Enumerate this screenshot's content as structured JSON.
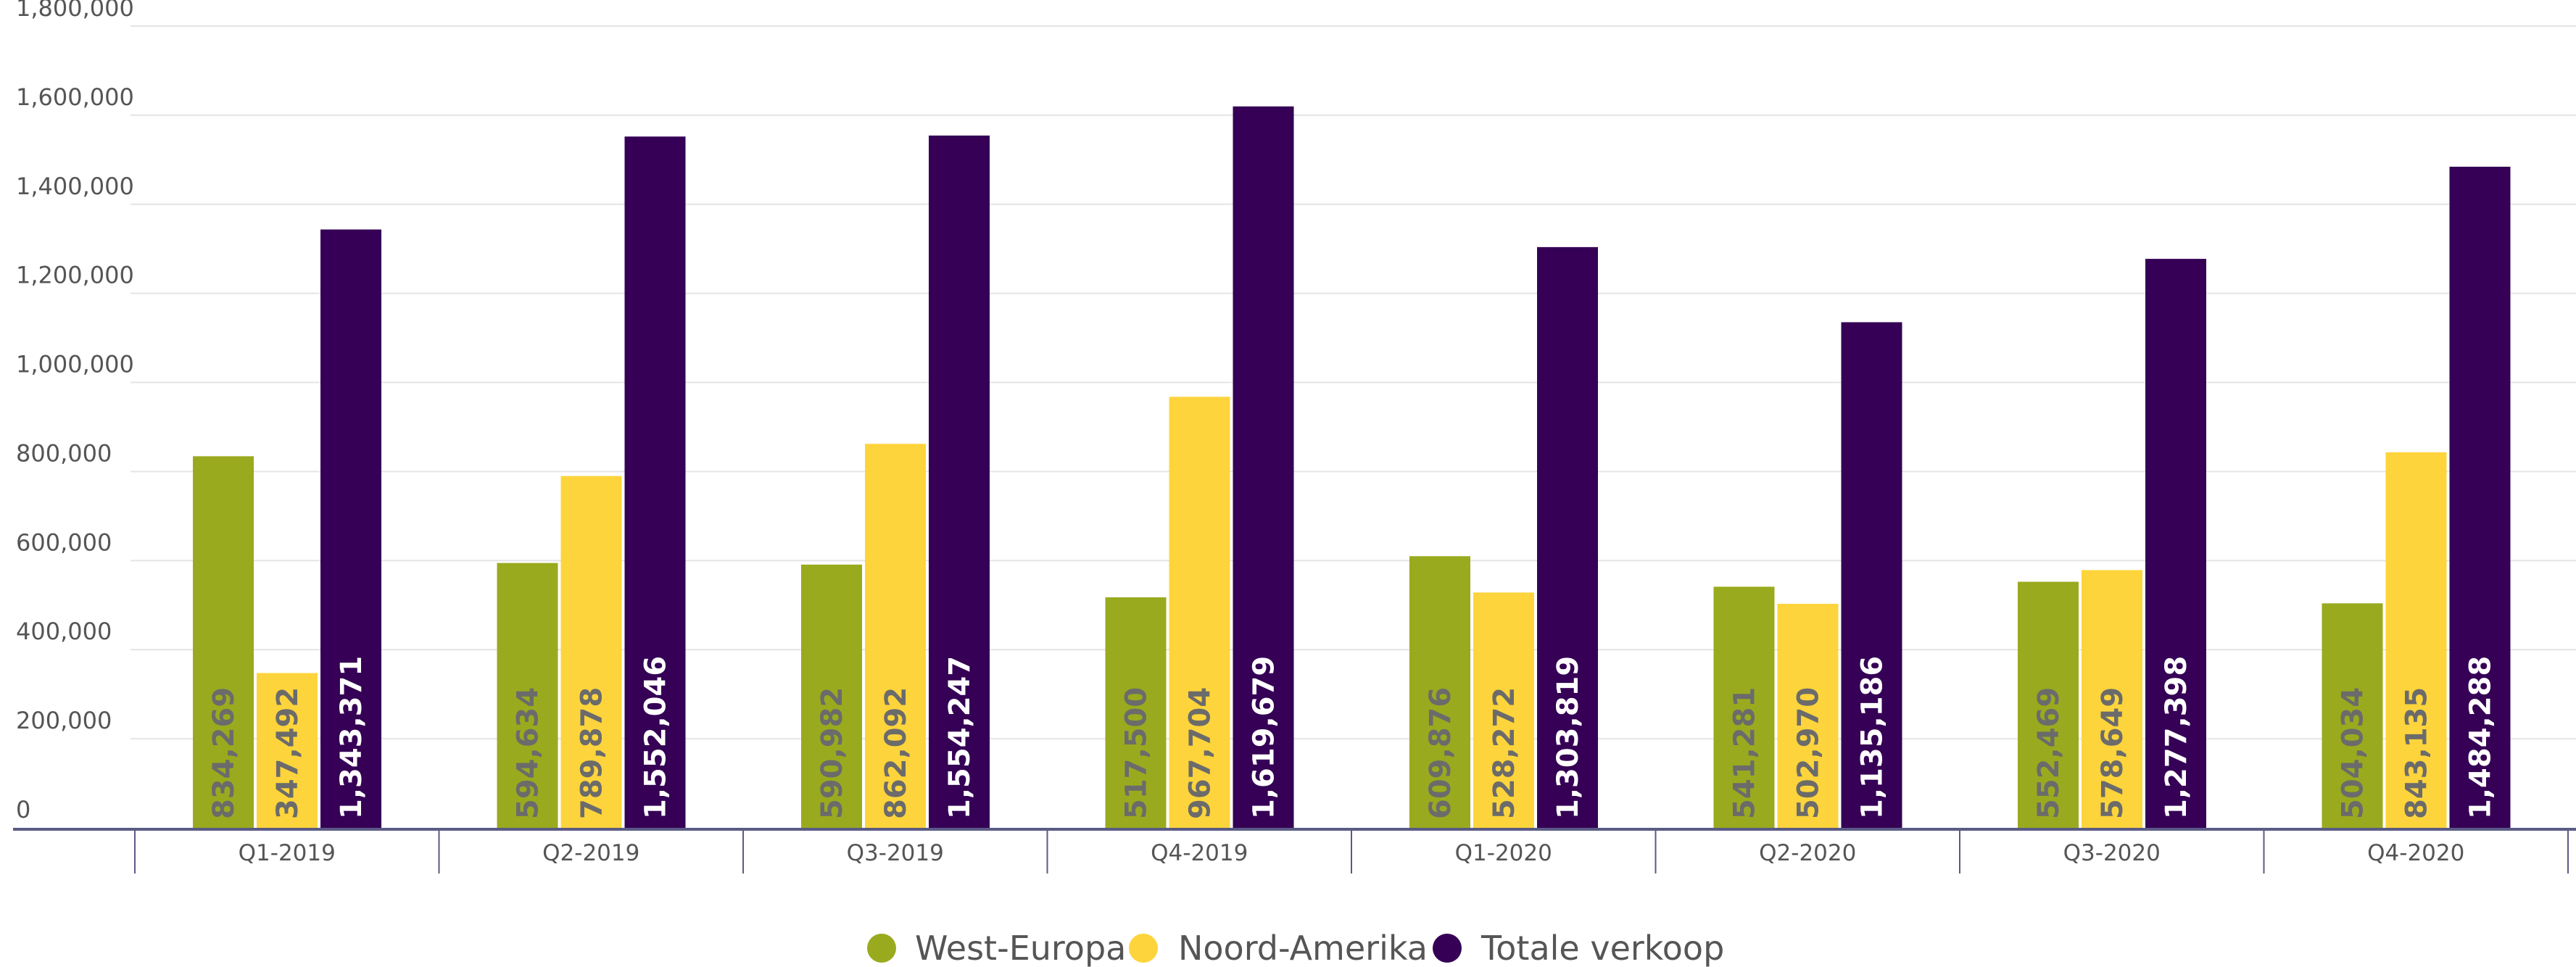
{
  "chart_data": {
    "type": "bar",
    "categories": [
      "Q1-2019",
      "Q2-2019",
      "Q3-2019",
      "Q4-2019",
      "Q1-2020",
      "Q2-2020",
      "Q3-2020",
      "Q4-2020"
    ],
    "series": [
      {
        "name": "West-Europa",
        "color": "#9aaa1e",
        "label_color": "#6b6b6b",
        "values": [
          834269,
          594634,
          590982,
          517500,
          609876,
          541281,
          552469,
          504034
        ],
        "labels": [
          "834,269",
          "594,634",
          "590,982",
          "517,500",
          "609,876",
          "541,281",
          "552,469",
          "504,034"
        ]
      },
      {
        "name": "Noord-Amerika",
        "color": "#fdd43b",
        "label_color": "#6b6b6b",
        "values": [
          347492,
          789878,
          862092,
          967704,
          528272,
          502970,
          578649,
          843135
        ],
        "labels": [
          "347,492",
          "789,878",
          "862,092",
          "967,704",
          "528,272",
          "502,970",
          "578,649",
          "843,135"
        ]
      },
      {
        "name": "Totale verkoop",
        "color": "#350055",
        "label_color": "#ffffff",
        "values": [
          1343371,
          1552046,
          1554247,
          1619679,
          1303819,
          1135186,
          1277398,
          1484288
        ],
        "labels": [
          "1,343,371",
          "1,552,046",
          "1,554,247",
          "1,619,679",
          "1,303,819",
          "1,135,186",
          "1,277,398",
          "1,484,288"
        ]
      }
    ],
    "ylim": [
      0,
      1800000
    ],
    "yticks": [
      0,
      200000,
      400000,
      600000,
      800000,
      1000000,
      1200000,
      1400000,
      1600000,
      1800000
    ],
    "ytick_labels": [
      "0",
      "200,000",
      "400,000",
      "600,000",
      "800,000",
      "1,000,000",
      "1,200,000",
      "1,400,000",
      "1,600,000",
      "1,800,000"
    ],
    "grid": true,
    "legend": "bottom-center"
  }
}
